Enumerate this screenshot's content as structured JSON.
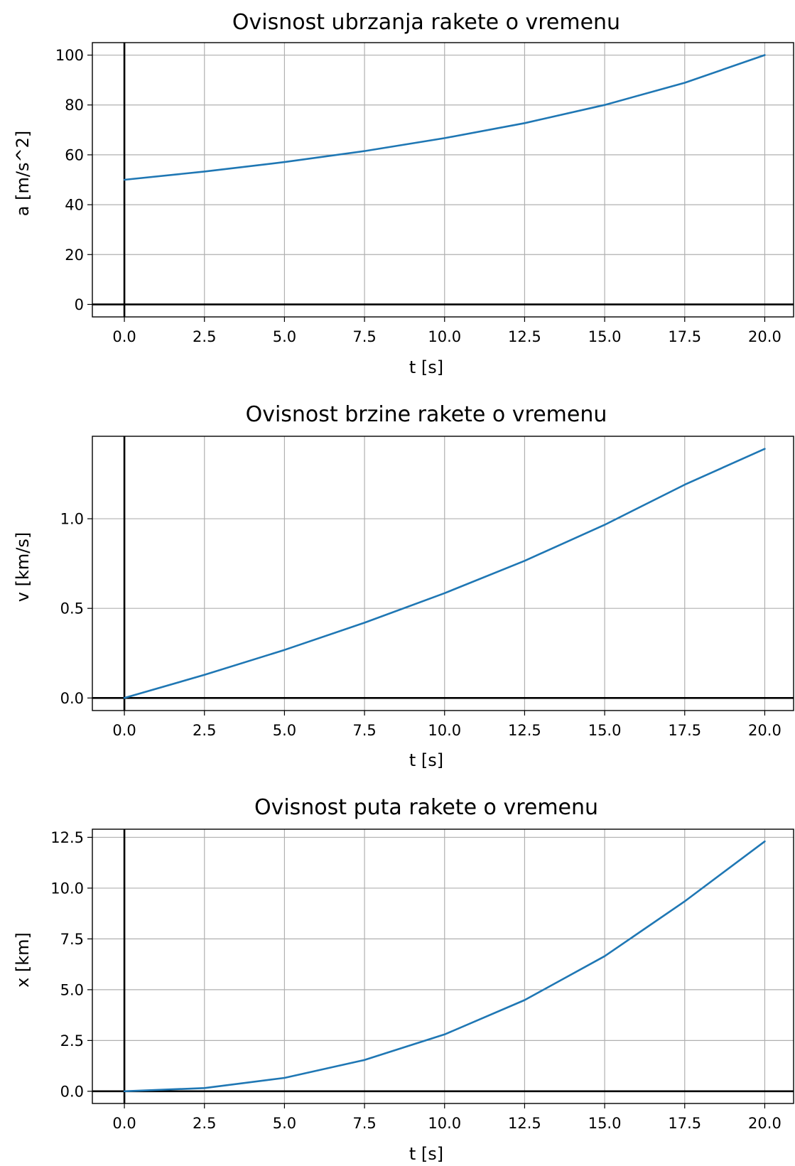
{
  "chart_data": [
    {
      "type": "line",
      "title": "Ovisnost ubrzanja rakete o vremenu",
      "xlabel": "t [s]",
      "ylabel": "a [m/s^2]",
      "xlim": [
        -1,
        20.9
      ],
      "ylim": [
        -5,
        105
      ],
      "xticks": [
        0.0,
        2.5,
        5.0,
        7.5,
        10.0,
        12.5,
        15.0,
        17.5,
        20.0
      ],
      "xtick_labels": [
        "0.0",
        "2.5",
        "5.0",
        "7.5",
        "10.0",
        "12.5",
        "15.0",
        "17.5",
        "20.0"
      ],
      "yticks": [
        0,
        20,
        40,
        60,
        80,
        100
      ],
      "ytick_labels": [
        "0",
        "20",
        "40",
        "60",
        "80",
        "100"
      ],
      "grid": true,
      "line_color": "#1f77b4",
      "series": [
        {
          "x": [
            0,
            2.5,
            5,
            7.5,
            10,
            12.5,
            15,
            17.5,
            20
          ],
          "y": [
            50.0,
            53.3,
            57.1,
            61.5,
            66.7,
            72.7,
            80.0,
            88.9,
            100.0
          ]
        }
      ]
    },
    {
      "type": "line",
      "title": "Ovisnost brzine rakete o vremenu",
      "xlabel": "t [s]",
      "ylabel": "v [km/s]",
      "xlim": [
        -1,
        20.9
      ],
      "ylim": [
        -0.07,
        1.46
      ],
      "xticks": [
        0.0,
        2.5,
        5.0,
        7.5,
        10.0,
        12.5,
        15.0,
        17.5,
        20.0
      ],
      "xtick_labels": [
        "0.0",
        "2.5",
        "5.0",
        "7.5",
        "10.0",
        "12.5",
        "15.0",
        "17.5",
        "20.0"
      ],
      "yticks": [
        0.0,
        0.5,
        1.0
      ],
      "ytick_labels": [
        "0.0",
        "0.5",
        "1.0"
      ],
      "grid": true,
      "line_color": "#1f77b4",
      "series": [
        {
          "x": [
            0,
            2.5,
            5,
            7.5,
            10,
            12.5,
            15,
            17.5,
            20
          ],
          "y": [
            0.0,
            0.129,
            0.268,
            0.42,
            0.585,
            0.765,
            0.966,
            1.19,
            1.39
          ]
        }
      ]
    },
    {
      "type": "line",
      "title": "Ovisnost puta rakete o vremenu",
      "xlabel": "t [s]",
      "ylabel": "x [km]",
      "xlim": [
        -1,
        20.9
      ],
      "ylim": [
        -0.6,
        12.9
      ],
      "xticks": [
        0.0,
        2.5,
        5.0,
        7.5,
        10.0,
        12.5,
        15.0,
        17.5,
        20.0
      ],
      "xtick_labels": [
        "0.0",
        "2.5",
        "5.0",
        "7.5",
        "10.0",
        "12.5",
        "15.0",
        "17.5",
        "20.0"
      ],
      "yticks": [
        0.0,
        2.5,
        5.0,
        7.5,
        10.0,
        12.5
      ],
      "ytick_labels": [
        "0.0",
        "2.5",
        "5.0",
        "7.5",
        "10.0",
        "12.5"
      ],
      "grid": true,
      "line_color": "#1f77b4",
      "series": [
        {
          "x": [
            0,
            2.5,
            5,
            7.5,
            10,
            12.5,
            15,
            17.5,
            20
          ],
          "y": [
            0.0,
            0.16,
            0.66,
            1.54,
            2.8,
            4.49,
            6.65,
            9.35,
            12.3
          ]
        }
      ]
    }
  ]
}
